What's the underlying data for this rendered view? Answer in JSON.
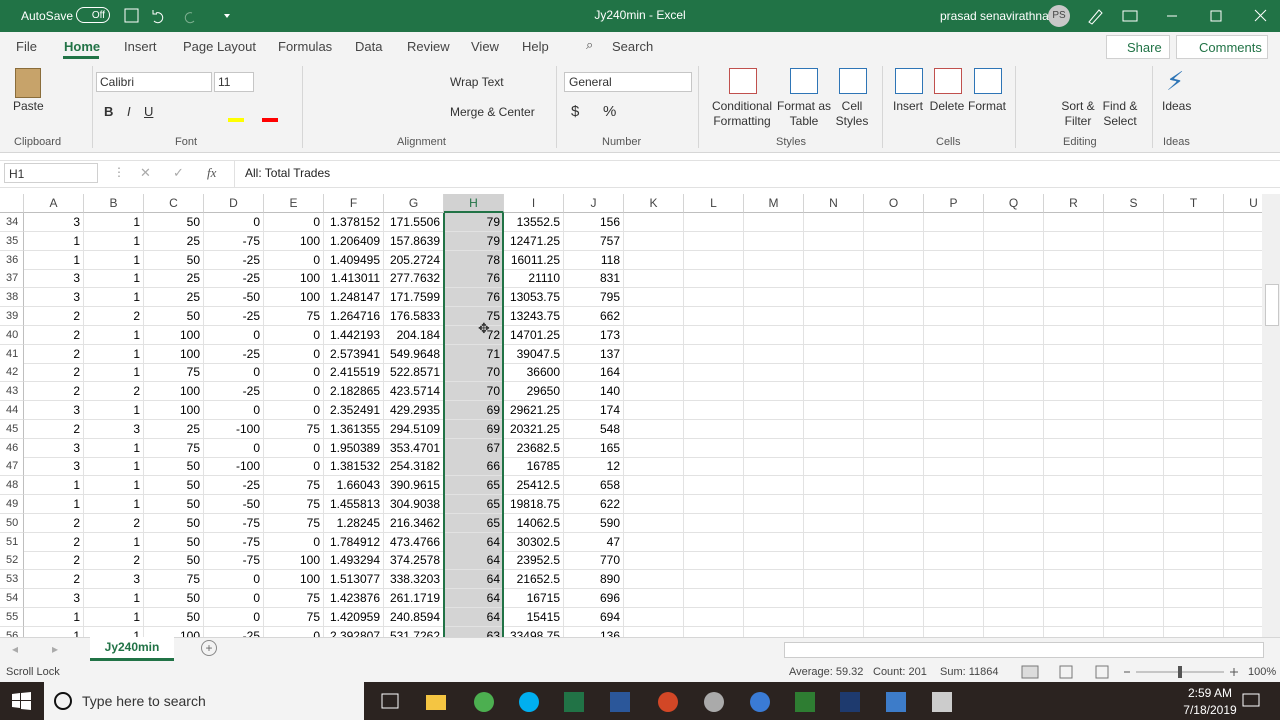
{
  "title_bar": {
    "autosave": "AutoSave",
    "autosave_state": "Off",
    "document_title": "Jy240min  -  Excel",
    "user_name": "prasad senavirathna",
    "user_initials": "PS"
  },
  "ribbon_tabs": [
    "File",
    "Home",
    "Insert",
    "Page Layout",
    "Formulas",
    "Data",
    "Review",
    "View",
    "Help"
  ],
  "search": "Search",
  "share": "Share",
  "comments": "Comments",
  "ribbon": {
    "paste": "Paste",
    "font_name": "Calibri",
    "font_size": "11",
    "bold": "B",
    "italic": "I",
    "underline": "U",
    "wrap_text": "Wrap Text",
    "merge_center": "Merge & Center",
    "number_format": "General",
    "currency": "$",
    "percent": "%",
    "conditional_formatting": [
      "Conditional",
      "Formatting"
    ],
    "format_as_table": [
      "Format as",
      "Table"
    ],
    "cell_styles": [
      "Cell",
      "Styles"
    ],
    "insert": "Insert",
    "delete": "Delete",
    "format": "Format",
    "sort_filter": [
      "Sort &",
      "Filter"
    ],
    "find_select": [
      "Find &",
      "Select"
    ],
    "ideas": "Ideas",
    "groups": [
      "Clipboard",
      "Font",
      "Alignment",
      "Number",
      "Styles",
      "Cells",
      "Editing",
      "Ideas"
    ]
  },
  "formula_bar": {
    "name_box": "H1",
    "fx": "fx",
    "formula": "All: Total Trades"
  },
  "columns": [
    "A",
    "B",
    "C",
    "D",
    "E",
    "F",
    "G",
    "H",
    "I",
    "J",
    "K",
    "L",
    "M",
    "N",
    "O",
    "P",
    "Q",
    "R",
    "S",
    "T",
    "U"
  ],
  "rows": [
    {
      "header": "34",
      "cells": [
        "3",
        "1",
        "50",
        "0",
        "0",
        "1.378152",
        "171.5506",
        "79",
        "13552.5",
        "156"
      ]
    },
    {
      "header": "35",
      "cells": [
        "1",
        "1",
        "25",
        "-75",
        "100",
        "1.206409",
        "157.8639",
        "79",
        "12471.25",
        "757"
      ]
    },
    {
      "header": "36",
      "cells": [
        "1",
        "1",
        "50",
        "-25",
        "0",
        "1.409495",
        "205.2724",
        "78",
        "16011.25",
        "118"
      ]
    },
    {
      "header": "37",
      "cells": [
        "3",
        "1",
        "25",
        "-25",
        "100",
        "1.413011",
        "277.7632",
        "76",
        "21110",
        "831"
      ]
    },
    {
      "header": "38",
      "cells": [
        "3",
        "1",
        "25",
        "-50",
        "100",
        "1.248147",
        "171.7599",
        "76",
        "13053.75",
        "795"
      ]
    },
    {
      "header": "39",
      "cells": [
        "2",
        "2",
        "50",
        "-25",
        "75",
        "1.264716",
        "176.5833",
        "75",
        "13243.75",
        "662"
      ]
    },
    {
      "header": "40",
      "cells": [
        "2",
        "1",
        "100",
        "0",
        "0",
        "1.442193",
        "204.184",
        "72",
        "14701.25",
        "173"
      ]
    },
    {
      "header": "41",
      "cells": [
        "2",
        "1",
        "100",
        "-25",
        "0",
        "2.573941",
        "549.9648",
        "71",
        "39047.5",
        "137"
      ]
    },
    {
      "header": "42",
      "cells": [
        "2",
        "1",
        "75",
        "0",
        "0",
        "2.415519",
        "522.8571",
        "70",
        "36600",
        "164"
      ]
    },
    {
      "header": "43",
      "cells": [
        "2",
        "2",
        "100",
        "-25",
        "0",
        "2.182865",
        "423.5714",
        "70",
        "29650",
        "140"
      ]
    },
    {
      "header": "44",
      "cells": [
        "3",
        "1",
        "100",
        "0",
        "0",
        "2.352491",
        "429.2935",
        "69",
        "29621.25",
        "174"
      ]
    },
    {
      "header": "45",
      "cells": [
        "2",
        "3",
        "25",
        "-100",
        "75",
        "1.361355",
        "294.5109",
        "69",
        "20321.25",
        "548"
      ]
    },
    {
      "header": "46",
      "cells": [
        "3",
        "1",
        "75",
        "0",
        "0",
        "1.950389",
        "353.4701",
        "67",
        "23682.5",
        "165"
      ]
    },
    {
      "header": "47",
      "cells": [
        "3",
        "1",
        "50",
        "-100",
        "0",
        "1.381532",
        "254.3182",
        "66",
        "16785",
        "12"
      ]
    },
    {
      "header": "48",
      "cells": [
        "1",
        "1",
        "50",
        "-25",
        "75",
        "1.66043",
        "390.9615",
        "65",
        "25412.5",
        "658"
      ]
    },
    {
      "header": "49",
      "cells": [
        "1",
        "1",
        "50",
        "-50",
        "75",
        "1.455813",
        "304.9038",
        "65",
        "19818.75",
        "622"
      ]
    },
    {
      "header": "50",
      "cells": [
        "2",
        "2",
        "50",
        "-75",
        "75",
        "1.28245",
        "216.3462",
        "65",
        "14062.5",
        "590"
      ]
    },
    {
      "header": "51",
      "cells": [
        "2",
        "1",
        "50",
        "-75",
        "0",
        "1.784912",
        "473.4766",
        "64",
        "30302.5",
        "47"
      ]
    },
    {
      "header": "52",
      "cells": [
        "2",
        "2",
        "50",
        "-75",
        "100",
        "1.493294",
        "374.2578",
        "64",
        "23952.5",
        "770"
      ]
    },
    {
      "header": "53",
      "cells": [
        "2",
        "3",
        "75",
        "0",
        "100",
        "1.513077",
        "338.3203",
        "64",
        "21652.5",
        "890"
      ]
    },
    {
      "header": "54",
      "cells": [
        "3",
        "1",
        "50",
        "0",
        "75",
        "1.423876",
        "261.1719",
        "64",
        "16715",
        "696"
      ]
    },
    {
      "header": "55",
      "cells": [
        "1",
        "1",
        "50",
        "0",
        "75",
        "1.420959",
        "240.8594",
        "64",
        "15415",
        "694"
      ]
    },
    {
      "header": "56",
      "cells": [
        "1",
        "1",
        "100",
        "-25",
        "0",
        "2.392807",
        "531.7262",
        "63",
        "33498.75",
        "136"
      ]
    }
  ],
  "sheet_tab": "Jy240min",
  "status_bar": {
    "mode": "Scroll Lock",
    "average": "Average: 59.32",
    "count": "Count: 201",
    "sum": "Sum: 11864",
    "zoom": "100%"
  },
  "taskbar": {
    "search": "Type here to search",
    "time": "2:59 AM",
    "date": "7/18/2019"
  }
}
